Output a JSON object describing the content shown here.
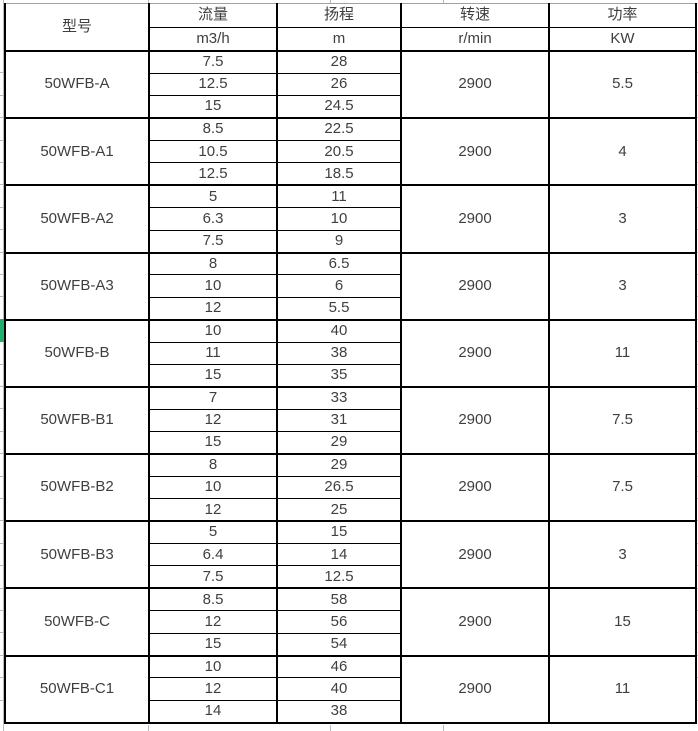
{
  "chart_data": {
    "type": "table",
    "header": {
      "model": "型号",
      "columns": [
        {
          "name": "流量",
          "unit": "m3/h"
        },
        {
          "name": "扬程",
          "unit": "m"
        },
        {
          "name": "转速",
          "unit": "r/min"
        },
        {
          "name": "功率",
          "unit": "KW"
        }
      ]
    },
    "rows": [
      {
        "model": "50WFB-A",
        "points": [
          [
            "7.5",
            "28"
          ],
          [
            "12.5",
            "26"
          ],
          [
            "15",
            "24.5"
          ]
        ],
        "speed": "2900",
        "power": "5.5"
      },
      {
        "model": "50WFB-A1",
        "points": [
          [
            "8.5",
            "22.5"
          ],
          [
            "10.5",
            "20.5"
          ],
          [
            "12.5",
            "18.5"
          ]
        ],
        "speed": "2900",
        "power": "4"
      },
      {
        "model": "50WFB-A2",
        "points": [
          [
            "5",
            "11"
          ],
          [
            "6.3",
            "10"
          ],
          [
            "7.5",
            "9"
          ]
        ],
        "speed": "2900",
        "power": "3"
      },
      {
        "model": "50WFB-A3",
        "points": [
          [
            "8",
            "6.5"
          ],
          [
            "10",
            "6"
          ],
          [
            "12",
            "5.5"
          ]
        ],
        "speed": "2900",
        "power": "3"
      },
      {
        "model": "50WFB-B",
        "points": [
          [
            "10",
            "40"
          ],
          [
            "11",
            "38"
          ],
          [
            "15",
            "35"
          ]
        ],
        "speed": "2900",
        "power": "11"
      },
      {
        "model": "50WFB-B1",
        "points": [
          [
            "7",
            "33"
          ],
          [
            "12",
            "31"
          ],
          [
            "15",
            "29"
          ]
        ],
        "speed": "2900",
        "power": "7.5"
      },
      {
        "model": "50WFB-B2",
        "points": [
          [
            "8",
            "29"
          ],
          [
            "10",
            "26.5"
          ],
          [
            "12",
            "25"
          ]
        ],
        "speed": "2900",
        "power": "7.5"
      },
      {
        "model": "50WFB-B3",
        "points": [
          [
            "5",
            "15"
          ],
          [
            "6.4",
            "14"
          ],
          [
            "7.5",
            "12.5"
          ]
        ],
        "speed": "2900",
        "power": "3"
      },
      {
        "model": "50WFB-C",
        "points": [
          [
            "8.5",
            "58"
          ],
          [
            "12",
            "56"
          ],
          [
            "15",
            "54"
          ]
        ],
        "speed": "2900",
        "power": "15"
      },
      {
        "model": "50WFB-C1",
        "points": [
          [
            "10",
            "46"
          ],
          [
            "12",
            "40"
          ],
          [
            "14",
            "38"
          ]
        ],
        "speed": "2900",
        "power": "11"
      }
    ]
  },
  "colors": {
    "selection_green": "#23ae6d",
    "grid_line": "#b4bbc7",
    "table_border": "#000000",
    "text": "#3f3f3f"
  }
}
